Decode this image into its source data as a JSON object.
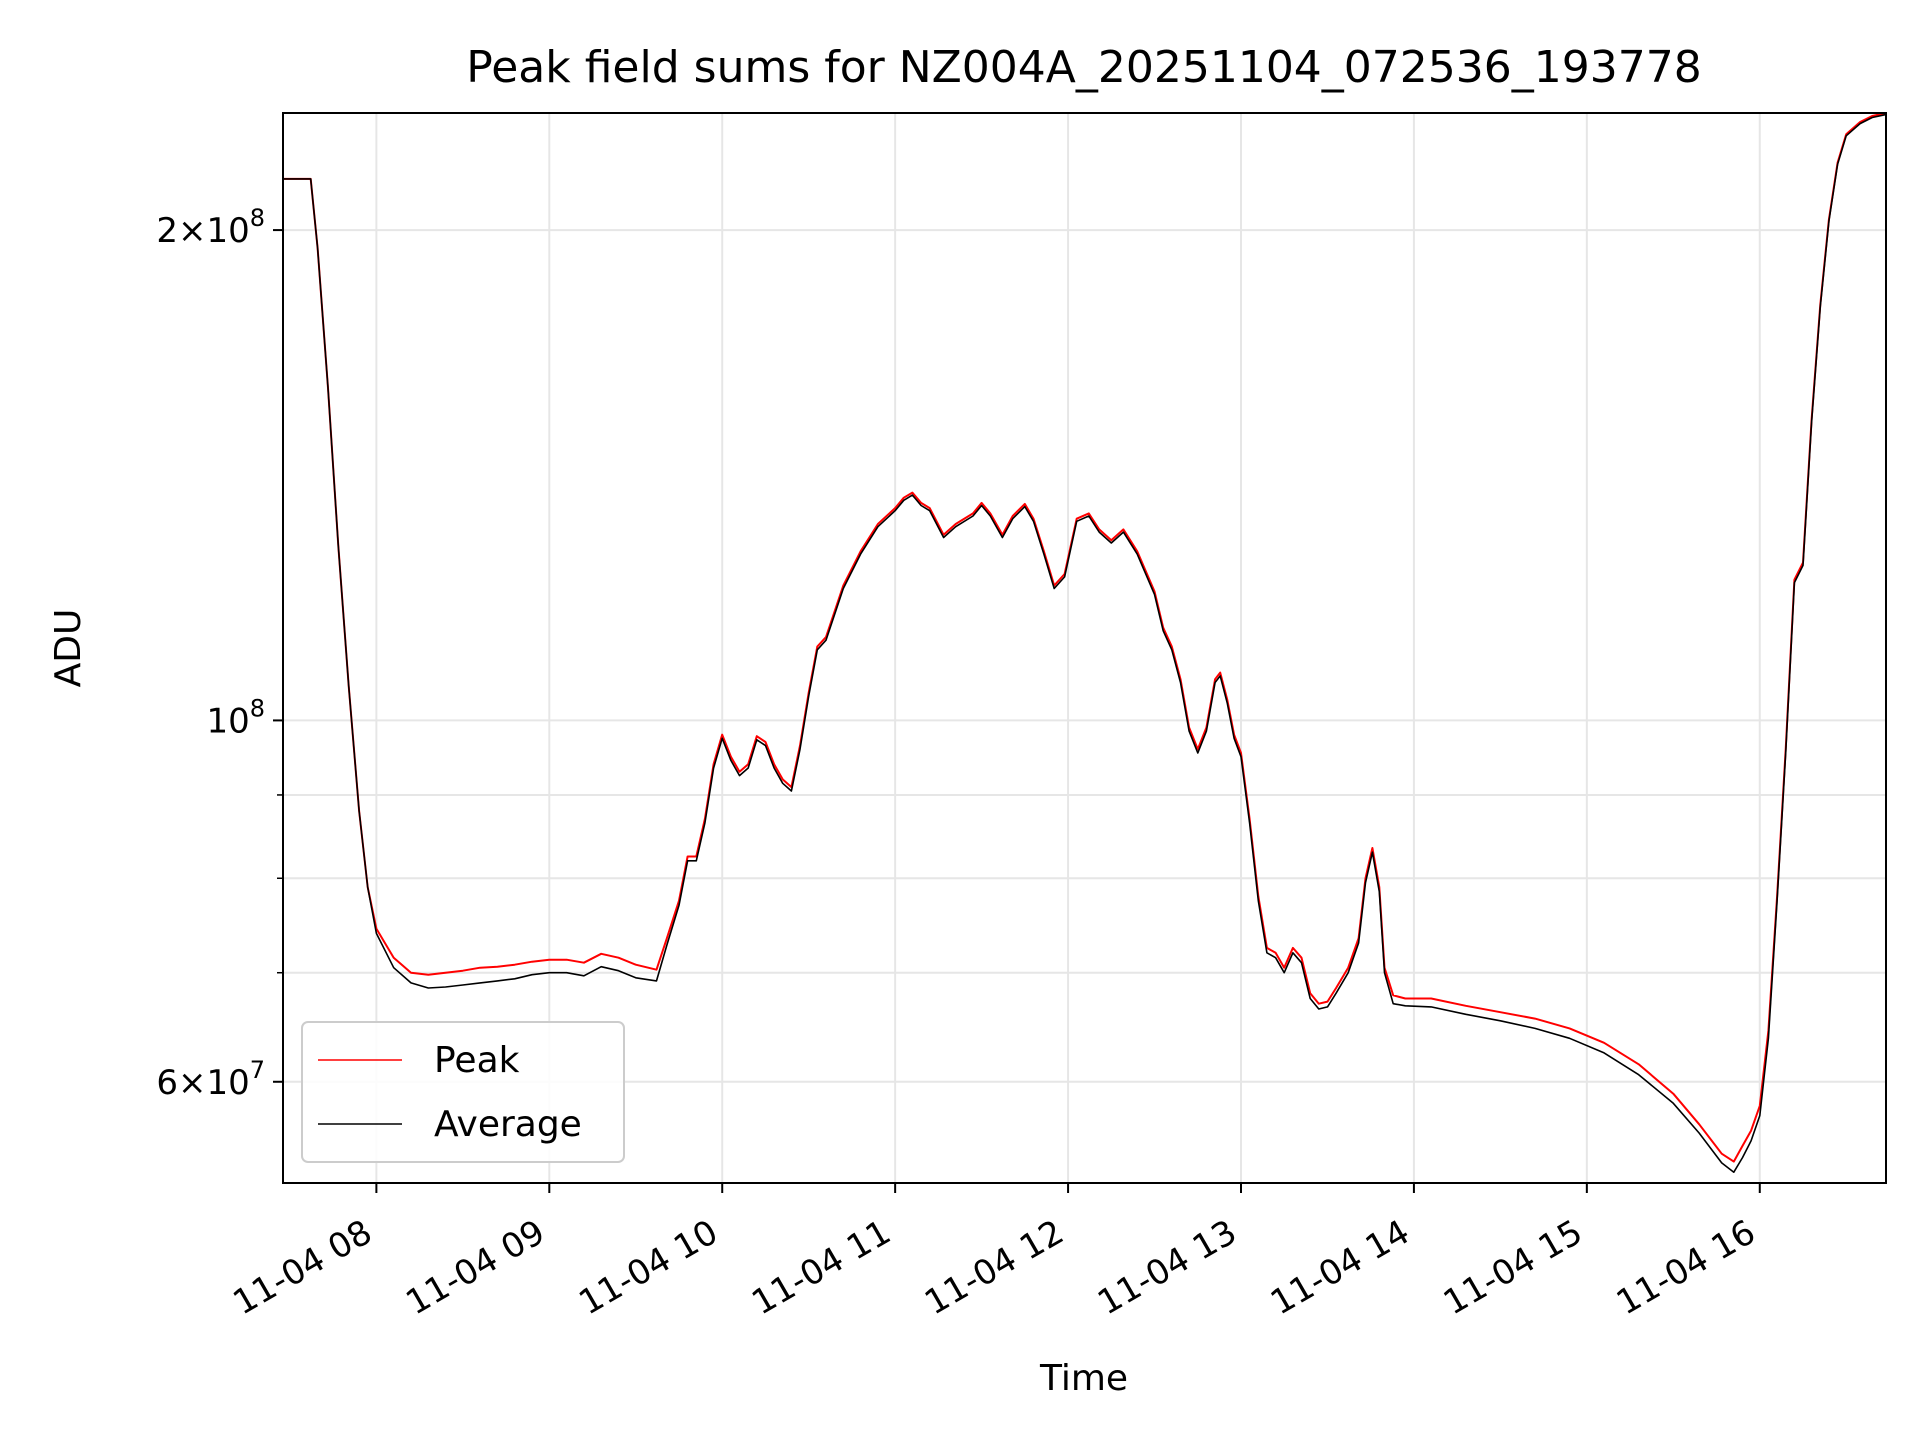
{
  "chart_data": {
    "type": "line",
    "title": "Peak field sums for NZ004A_20251104_072536_193778",
    "xlabel": "Time",
    "ylabel": "ADU",
    "y_scale": "log",
    "xlim": [
      7.46,
      16.73
    ],
    "ylim": [
      52000000,
      236000000
    ],
    "grid": true,
    "legend_position": "lower-left",
    "x_unit": "hour of 2025-11-04",
    "x_ticks": [
      {
        "value": 8,
        "label": "11-04 08"
      },
      {
        "value": 9,
        "label": "11-04 09"
      },
      {
        "value": 10,
        "label": "11-04 10"
      },
      {
        "value": 11,
        "label": "11-04 11"
      },
      {
        "value": 12,
        "label": "11-04 12"
      },
      {
        "value": 13,
        "label": "11-04 13"
      },
      {
        "value": 14,
        "label": "11-04 14"
      },
      {
        "value": 15,
        "label": "11-04 15"
      },
      {
        "value": 16,
        "label": "11-04 16"
      }
    ],
    "y_ticks": [
      {
        "value": 60000000,
        "mantissa": "6",
        "exponent": "7"
      },
      {
        "value": 100000000,
        "mantissa": "",
        "exponent": "8"
      },
      {
        "value": 200000000,
        "mantissa": "2",
        "exponent": "8"
      }
    ],
    "y_minor_grid": [
      70000000,
      80000000,
      90000000
    ],
    "series": [
      {
        "name": "Peak",
        "color": "#ff0000",
        "x": [
          7.46,
          7.58,
          7.62,
          7.66,
          7.72,
          7.78,
          7.84,
          7.9,
          7.95,
          8.0,
          8.1,
          8.2,
          8.3,
          8.4,
          8.5,
          8.6,
          8.7,
          8.8,
          8.9,
          9.0,
          9.1,
          9.2,
          9.3,
          9.4,
          9.5,
          9.62,
          9.68,
          9.75,
          9.8,
          9.85,
          9.9,
          9.95,
          10.0,
          10.05,
          10.1,
          10.15,
          10.2,
          10.25,
          10.3,
          10.35,
          10.4,
          10.45,
          10.5,
          10.55,
          10.6,
          10.7,
          10.8,
          10.9,
          11.0,
          11.05,
          11.1,
          11.15,
          11.2,
          11.28,
          11.35,
          11.45,
          11.5,
          11.55,
          11.62,
          11.68,
          11.75,
          11.8,
          11.86,
          11.92,
          11.98,
          12.05,
          12.12,
          12.18,
          12.25,
          12.32,
          12.4,
          12.5,
          12.55,
          12.6,
          12.65,
          12.7,
          12.75,
          12.8,
          12.85,
          12.88,
          12.92,
          12.96,
          13.0,
          13.05,
          13.1,
          13.15,
          13.2,
          13.25,
          13.3,
          13.35,
          13.4,
          13.45,
          13.5,
          13.55,
          13.62,
          13.68,
          13.72,
          13.76,
          13.8,
          13.83,
          13.88,
          13.95,
          14.1,
          14.3,
          14.5,
          14.7,
          14.9,
          15.1,
          15.3,
          15.5,
          15.65,
          15.78,
          15.85,
          15.9,
          15.95,
          16.0,
          16.05,
          16.1,
          16.15,
          16.2,
          16.25,
          16.3,
          16.35,
          16.4,
          16.45,
          16.5,
          16.58,
          16.65,
          16.73
        ],
        "y": [
          215000000,
          215000000,
          215000000,
          195000000,
          160000000,
          128000000,
          105000000,
          88000000,
          79000000,
          74500000,
          71500000,
          70000000,
          69800000,
          70000000,
          70200000,
          70500000,
          70600000,
          70800000,
          71100000,
          71300000,
          71300000,
          71000000,
          71900000,
          71500000,
          70800000,
          70300000,
          73500000,
          77500000,
          82500000,
          82500000,
          87000000,
          94000000,
          98000000,
          95000000,
          93000000,
          94000000,
          97800000,
          97000000,
          94000000,
          92000000,
          91000000,
          96500000,
          104000000,
          111000000,
          112500000,
          121000000,
          127000000,
          132000000,
          135000000,
          137000000,
          138000000,
          136000000,
          135000000,
          130000000,
          132000000,
          134000000,
          136000000,
          134000000,
          130000000,
          133500000,
          135800000,
          133000000,
          127000000,
          121000000,
          123000000,
          133000000,
          134000000,
          131000000,
          129000000,
          131000000,
          127000000,
          120000000,
          114000000,
          111000000,
          106000000,
          99000000,
          96000000,
          99000000,
          106000000,
          107000000,
          103000000,
          98000000,
          95500000,
          87000000,
          78000000,
          72500000,
          72000000,
          70500000,
          72500000,
          71500000,
          68000000,
          67000000,
          67200000,
          68500000,
          70500000,
          73500000,
          80000000,
          83500000,
          79000000,
          70500000,
          67800000,
          67500000,
          67500000,
          66800000,
          66200000,
          65600000,
          64700000,
          63400000,
          61500000,
          59000000,
          56500000,
          54200000,
          53600000,
          54800000,
          56000000,
          58000000,
          64500000,
          78000000,
          96000000,
          122000000,
          125000000,
          153000000,
          180000000,
          203000000,
          220000000,
          229000000,
          233000000,
          235000000,
          236000000
        ]
      },
      {
        "name": "Average",
        "color": "#000000",
        "x": [
          7.46,
          7.58,
          7.62,
          7.66,
          7.72,
          7.78,
          7.84,
          7.9,
          7.95,
          8.0,
          8.1,
          8.2,
          8.3,
          8.4,
          8.5,
          8.6,
          8.7,
          8.8,
          8.9,
          9.0,
          9.1,
          9.2,
          9.3,
          9.4,
          9.5,
          9.62,
          9.68,
          9.75,
          9.8,
          9.85,
          9.9,
          9.95,
          10.0,
          10.05,
          10.1,
          10.15,
          10.2,
          10.25,
          10.3,
          10.35,
          10.4,
          10.45,
          10.5,
          10.55,
          10.6,
          10.7,
          10.8,
          10.9,
          11.0,
          11.05,
          11.1,
          11.15,
          11.2,
          11.28,
          11.35,
          11.45,
          11.5,
          11.55,
          11.62,
          11.68,
          11.75,
          11.8,
          11.86,
          11.92,
          11.98,
          12.05,
          12.12,
          12.18,
          12.25,
          12.32,
          12.4,
          12.5,
          12.55,
          12.6,
          12.65,
          12.7,
          12.75,
          12.8,
          12.85,
          12.88,
          12.92,
          12.96,
          13.0,
          13.05,
          13.1,
          13.15,
          13.2,
          13.25,
          13.3,
          13.35,
          13.4,
          13.45,
          13.5,
          13.55,
          13.62,
          13.68,
          13.72,
          13.76,
          13.8,
          13.83,
          13.88,
          13.95,
          14.1,
          14.3,
          14.5,
          14.7,
          14.9,
          15.1,
          15.3,
          15.5,
          15.65,
          15.78,
          15.85,
          15.9,
          15.95,
          16.0,
          16.05,
          16.1,
          16.15,
          16.2,
          16.25,
          16.3,
          16.35,
          16.4,
          16.45,
          16.5,
          16.58,
          16.65,
          16.73
        ],
        "y": [
          215000000,
          215000000,
          215000000,
          195000000,
          160000000,
          128000000,
          105000000,
          88000000,
          79000000,
          74000000,
          70500000,
          69000000,
          68500000,
          68600000,
          68800000,
          69000000,
          69200000,
          69400000,
          69800000,
          70000000,
          70000000,
          69700000,
          70600000,
          70200000,
          69500000,
          69200000,
          72800000,
          77000000,
          82000000,
          82000000,
          86500000,
          93500000,
          97500000,
          94500000,
          92500000,
          93500000,
          97300000,
          96500000,
          93500000,
          91500000,
          90500000,
          96000000,
          103500000,
          110500000,
          112000000,
          120500000,
          126500000,
          131500000,
          134500000,
          136500000,
          137500000,
          135500000,
          134500000,
          129500000,
          131500000,
          133500000,
          135500000,
          133500000,
          129500000,
          133000000,
          135300000,
          132500000,
          126500000,
          120500000,
          122500000,
          132500000,
          133500000,
          130500000,
          128500000,
          130500000,
          126500000,
          119500000,
          113500000,
          110500000,
          105500000,
          98500000,
          95500000,
          98500000,
          105500000,
          106500000,
          102500000,
          97500000,
          95000000,
          86500000,
          77500000,
          72000000,
          71500000,
          70000000,
          72000000,
          71000000,
          67500000,
          66500000,
          66700000,
          68000000,
          70000000,
          73000000,
          79500000,
          83000000,
          78500000,
          70000000,
          67000000,
          66800000,
          66700000,
          66000000,
          65400000,
          64700000,
          63800000,
          62500000,
          60600000,
          58200000,
          55800000,
          53500000,
          52800000,
          53900000,
          55200000,
          57200000,
          63800000,
          77500000,
          95500000,
          121500000,
          124500000,
          152500000,
          179500000,
          202500000,
          219500000,
          228500000,
          232500000,
          234500000,
          235500000
        ]
      }
    ]
  }
}
